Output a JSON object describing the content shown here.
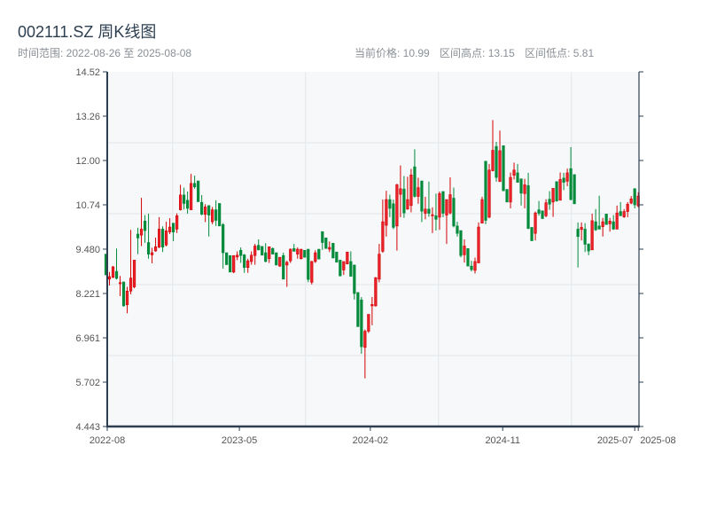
{
  "header": {
    "title": "002111.SZ 周K线图",
    "range_label": "时间范围: 2022-08-26 至 2025-08-08",
    "current_price": "当前价格: 10.99",
    "range_high": "区间高点: 13.15",
    "range_low": "区间低点: 5.81"
  },
  "colors": {
    "up": "#d40000",
    "up_fill": "#e8232b",
    "down": "#008a3a",
    "axis": "#2d3e50",
    "grid": "#e3e6ea",
    "plot_bg": "#f6f8fa"
  },
  "chart_data": {
    "type": "candlestick",
    "title": "002111.SZ 周K线图",
    "xlabel": "",
    "ylabel": "",
    "ylim": [
      4.443,
      14.52
    ],
    "xlim": [
      0.37,
      150.2
    ],
    "grid": true,
    "yticks": [
      "4.443",
      "5.702",
      "6.961",
      "8.221",
      "9.480",
      "10.74",
      "12.00",
      "13.26",
      "14.52"
    ],
    "xticks": [
      {
        "x": 0.37,
        "label": "2022-08"
      },
      {
        "x": 37.6,
        "label": "2023-05"
      },
      {
        "x": 74.5,
        "label": "2024-02"
      },
      {
        "x": 111.8,
        "label": "2024-11"
      },
      {
        "x": 149,
        "label": "2025-07"
      },
      {
        "x": 150,
        "label": "2025-08"
      }
    ],
    "ohlc_fields": [
      "open",
      "high",
      "low",
      "close"
    ],
    "ohlc": [
      [
        9.34,
        9.34,
        8.75,
        8.75
      ],
      [
        8.63,
        8.83,
        8.45,
        8.7
      ],
      [
        8.68,
        9.0,
        8.66,
        8.98
      ],
      [
        8.85,
        9.5,
        8.62,
        8.65
      ],
      [
        8.5,
        8.72,
        8.15,
        8.53
      ],
      [
        8.55,
        8.55,
        7.85,
        7.87
      ],
      [
        7.9,
        8.41,
        7.66,
        8.29
      ],
      [
        8.29,
        10.03,
        8.2,
        8.66
      ],
      [
        8.41,
        9.17,
        8.37,
        9.17
      ],
      [
        9.91,
        10.09,
        9.34,
        9.8
      ],
      [
        9.88,
        10.94,
        9.57,
        10.05
      ],
      [
        10.28,
        10.45,
        9.66,
        10.01
      ],
      [
        9.67,
        10.49,
        9.21,
        9.34
      ],
      [
        9.32,
        9.52,
        9.08,
        9.38
      ],
      [
        9.43,
        9.81,
        9.41,
        9.55
      ],
      [
        9.54,
        10.39,
        9.51,
        10.05
      ],
      [
        10.05,
        10.13,
        9.4,
        9.54
      ],
      [
        9.6,
        10.26,
        9.56,
        10.0
      ],
      [
        9.97,
        10.36,
        9.91,
        10.11
      ],
      [
        10.22,
        10.22,
        9.71,
        9.97
      ],
      [
        10.05,
        10.5,
        9.94,
        10.43
      ],
      [
        10.6,
        11.31,
        10.58,
        11.02
      ],
      [
        11.02,
        11.23,
        10.61,
        10.78
      ],
      [
        10.87,
        11.12,
        10.49,
        10.64
      ],
      [
        10.6,
        11.62,
        10.6,
        11.35
      ],
      [
        11.35,
        11.57,
        11.2,
        11.25
      ],
      [
        11.42,
        11.42,
        10.83,
        10.83
      ],
      [
        10.81,
        11.02,
        10.45,
        10.47
      ],
      [
        10.47,
        10.76,
        10.25,
        10.68
      ],
      [
        10.72,
        10.72,
        9.84,
        10.45
      ],
      [
        10.26,
        10.68,
        10.19,
        10.6
      ],
      [
        10.6,
        10.87,
        10.14,
        10.3
      ],
      [
        10.78,
        10.78,
        10.14,
        10.14
      ],
      [
        10.18,
        10.22,
        8.93,
        9.38
      ],
      [
        9.38,
        9.38,
        9.04,
        9.04
      ],
      [
        9.3,
        9.3,
        8.83,
        8.83
      ],
      [
        8.83,
        9.3,
        8.8,
        9.3
      ],
      [
        9.26,
        9.42,
        9.17,
        9.31
      ],
      [
        9.45,
        9.53,
        9.09,
        9.3
      ],
      [
        9.32,
        9.34,
        8.81,
        8.96
      ],
      [
        8.96,
        9.21,
        8.81,
        9.15
      ],
      [
        9.13,
        9.42,
        9.04,
        9.31
      ],
      [
        9.3,
        9.63,
        9.04,
        9.57
      ],
      [
        9.59,
        9.76,
        9.45,
        9.46
      ],
      [
        9.56,
        9.56,
        9.31,
        9.31
      ],
      [
        9.38,
        9.65,
        9.11,
        9.13
      ],
      [
        9.21,
        9.55,
        9.09,
        9.55
      ],
      [
        9.5,
        9.53,
        9.34,
        9.34
      ],
      [
        9.38,
        9.38,
        9.03,
        9.03
      ],
      [
        9.0,
        9.25,
        8.98,
        9.25
      ],
      [
        9.3,
        9.38,
        8.63,
        8.63
      ],
      [
        9.03,
        9.15,
        8.41,
        9.11
      ],
      [
        9.15,
        9.5,
        9.09,
        9.48
      ],
      [
        9.5,
        9.63,
        9.42,
        9.42
      ],
      [
        9.34,
        9.53,
        9.21,
        9.48
      ],
      [
        9.21,
        9.48,
        9.19,
        9.48
      ],
      [
        9.45,
        9.45,
        9.25,
        9.25
      ],
      [
        9.48,
        9.48,
        8.54,
        8.62
      ],
      [
        8.54,
        9.15,
        8.48,
        9.13
      ],
      [
        9.13,
        9.45,
        9.09,
        9.38
      ],
      [
        9.48,
        9.48,
        9.2,
        9.2
      ],
      [
        9.98,
        9.98,
        9.46,
        9.67
      ],
      [
        9.8,
        9.8,
        9.5,
        9.5
      ],
      [
        9.48,
        9.7,
        9.4,
        9.53
      ],
      [
        9.65,
        9.65,
        9.23,
        9.23
      ],
      [
        9.4,
        9.4,
        9.11,
        9.11
      ],
      [
        9.17,
        9.17,
        8.72,
        8.72
      ],
      [
        8.89,
        9.13,
        8.75,
        9.13
      ],
      [
        9.06,
        9.4,
        9.06,
        9.4
      ],
      [
        9.13,
        9.42,
        8.71,
        8.71
      ],
      [
        9.03,
        9.04,
        8.05,
        8.22
      ],
      [
        8.25,
        8.25,
        7.28,
        7.28
      ],
      [
        8.04,
        8.12,
        6.51,
        6.71
      ],
      [
        6.69,
        7.2,
        5.81,
        7.15
      ],
      [
        7.15,
        7.63,
        7.1,
        7.63
      ],
      [
        7.87,
        8.12,
        7.32,
        7.91
      ],
      [
        7.87,
        8.69,
        7.85,
        8.67
      ],
      [
        8.63,
        9.63,
        8.54,
        9.34
      ],
      [
        9.42,
        10.89,
        9.38,
        10.26
      ],
      [
        10.16,
        11.14,
        9.84,
        10.89
      ],
      [
        10.89,
        11.03,
        10.39,
        10.64
      ],
      [
        10.77,
        10.89,
        10.05,
        10.1
      ],
      [
        10.14,
        11.34,
        9.44,
        11.31
      ],
      [
        11.04,
        11.86,
        10.39,
        11.2
      ],
      [
        11.19,
        11.56,
        10.37,
        10.51
      ],
      [
        10.62,
        11.54,
        10.6,
        10.89
      ],
      [
        10.72,
        11.76,
        10.53,
        11.59
      ],
      [
        11.82,
        12.32,
        10.95,
        10.98
      ],
      [
        10.98,
        11.51,
        10.77,
        11.23
      ],
      [
        11.42,
        11.42,
        10.25,
        10.56
      ],
      [
        10.5,
        10.97,
        10.33,
        10.62
      ],
      [
        10.62,
        11.4,
        10.4,
        10.5
      ],
      [
        10.43,
        10.67,
        9.94,
        10.46
      ],
      [
        10.43,
        11.06,
        10.01,
        10.33
      ],
      [
        10.39,
        11.12,
        10.03,
        11.06
      ],
      [
        11.12,
        11.12,
        10.39,
        10.5
      ],
      [
        10.45,
        10.89,
        9.63,
        10.89
      ],
      [
        10.51,
        11.52,
        10.47,
        11.03
      ],
      [
        10.93,
        11.23,
        10.1,
        10.14
      ],
      [
        10.14,
        10.26,
        9.84,
        9.93
      ],
      [
        10.01,
        10.01,
        9.25,
        9.3
      ],
      [
        9.32,
        9.76,
        9.1,
        9.57
      ],
      [
        9.5,
        9.5,
        9.0,
        9.0
      ],
      [
        9.0,
        9.15,
        8.85,
        8.9
      ],
      [
        8.88,
        9.24,
        8.79,
        9.13
      ],
      [
        9.09,
        10.24,
        9.09,
        10.11
      ],
      [
        10.22,
        10.97,
        10.22,
        10.89
      ],
      [
        11.98,
        11.98,
        10.19,
        10.3
      ],
      [
        10.39,
        11.9,
        10.36,
        11.73
      ],
      [
        11.71,
        13.15,
        11.69,
        12.29
      ],
      [
        12.4,
        12.53,
        11.4,
        11.52
      ],
      [
        11.4,
        12.85,
        11.4,
        12.28
      ],
      [
        12.42,
        12.42,
        11.14,
        11.14
      ],
      [
        11.18,
        11.18,
        10.82,
        10.82
      ],
      [
        10.82,
        11.66,
        10.64,
        11.52
      ],
      [
        11.58,
        11.94,
        11.46,
        11.73
      ],
      [
        11.65,
        11.9,
        11.38,
        11.38
      ],
      [
        11.48,
        11.48,
        10.72,
        11.07
      ],
      [
        11.06,
        11.48,
        10.64,
        11.31
      ],
      [
        11.29,
        11.65,
        10.05,
        10.07
      ],
      [
        10.1,
        10.1,
        9.72,
        9.72
      ],
      [
        9.93,
        10.55,
        9.73,
        10.51
      ],
      [
        10.6,
        10.85,
        10.43,
        10.5
      ],
      [
        10.57,
        10.57,
        10.35,
        10.35
      ],
      [
        10.43,
        10.9,
        10.39,
        10.8
      ],
      [
        10.9,
        11.13,
        10.6,
        10.76
      ],
      [
        10.82,
        11.21,
        10.4,
        11.21
      ],
      [
        11.4,
        11.41,
        10.83,
        10.85
      ],
      [
        10.87,
        11.66,
        10.87,
        11.46
      ],
      [
        11.5,
        11.65,
        11.16,
        11.38
      ],
      [
        11.41,
        11.77,
        11.27,
        11.65
      ],
      [
        11.77,
        12.38,
        10.87,
        10.89
      ],
      [
        11.6,
        11.6,
        10.77,
        10.77
      ],
      [
        10.05,
        10.24,
        8.96,
        9.84
      ],
      [
        10.04,
        10.24,
        9.73,
        10.1
      ],
      [
        10.05,
        10.22,
        9.4,
        9.62
      ],
      [
        9.63,
        9.63,
        9.31,
        9.43
      ],
      [
        9.46,
        10.49,
        9.46,
        10.29
      ],
      [
        10.26,
        10.62,
        10.0,
        10.03
      ],
      [
        10.14,
        11.0,
        10.05,
        10.05
      ],
      [
        10.12,
        10.37,
        9.84,
        10.26
      ],
      [
        10.48,
        10.48,
        10.18,
        10.18
      ],
      [
        10.2,
        10.37,
        9.98,
        10.28
      ],
      [
        10.26,
        10.45,
        10.03,
        10.05
      ],
      [
        10.05,
        10.72,
        10.05,
        10.51
      ],
      [
        10.55,
        10.82,
        10.43,
        10.43
      ],
      [
        10.4,
        10.62,
        10.37,
        10.55
      ],
      [
        10.55,
        10.82,
        10.39,
        10.76
      ],
      [
        10.79,
        10.99,
        10.76,
        10.91
      ],
      [
        11.2,
        11.21,
        10.64,
        10.74
      ],
      [
        10.71,
        11.1,
        10.67,
        10.99
      ]
    ]
  }
}
